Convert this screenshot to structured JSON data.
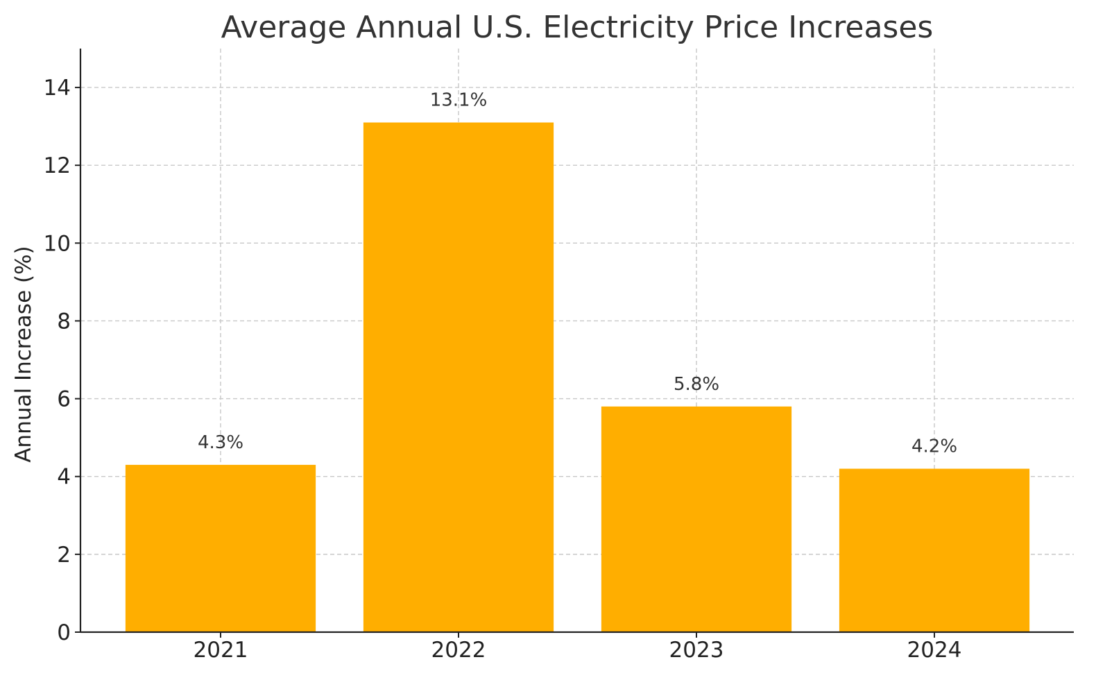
{
  "chart_data": {
    "type": "bar",
    "title": "Average Annual U.S. Electricity Price Increases",
    "xlabel": "",
    "ylabel": "Annual Increase (%)",
    "categories": [
      "2021",
      "2022",
      "2023",
      "2024"
    ],
    "values": [
      4.3,
      13.1,
      5.8,
      4.2
    ],
    "data_labels": [
      "4.3%",
      "13.1%",
      "5.8%",
      "4.2%"
    ],
    "ylim": [
      0,
      15
    ],
    "yticks": [
      0,
      2,
      4,
      6,
      8,
      10,
      12,
      14
    ],
    "ytick_labels": [
      "0",
      "2",
      "4",
      "6",
      "8",
      "10",
      "12",
      "14"
    ],
    "grid": true,
    "legend": "none",
    "bar_color": "#FFAE00"
  }
}
